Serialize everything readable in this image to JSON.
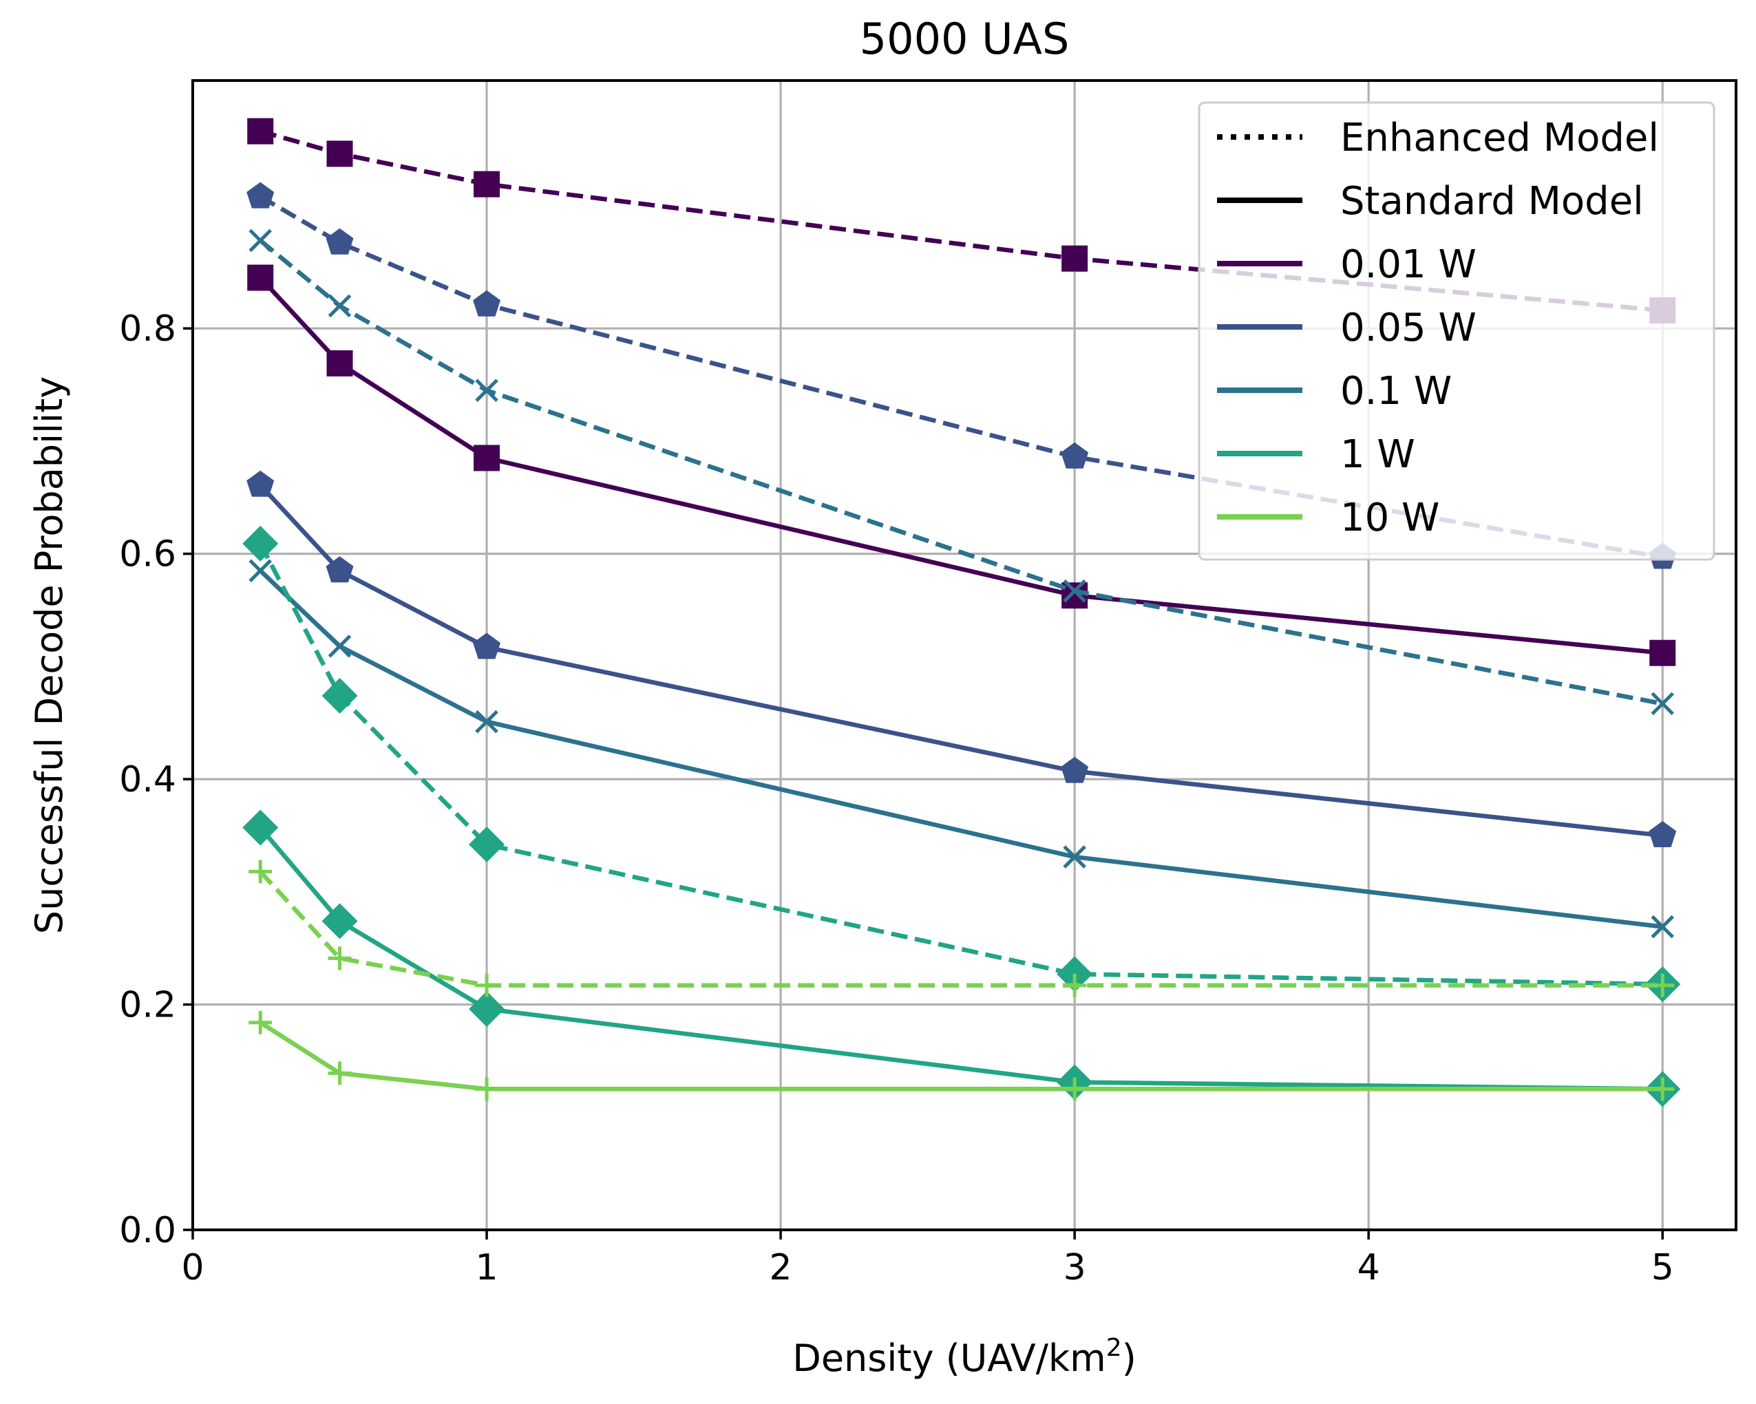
{
  "chart_data": {
    "type": "line",
    "title": "5000 UAS",
    "xlabel_main": "Density (UAV/km",
    "xlabel_sup": "2",
    "xlabel_close": ")",
    "ylabel": "Successful Decode Probability",
    "xlim": [
      0,
      5.25
    ],
    "ylim": [
      0,
      1.02
    ],
    "xticks": [
      0,
      1,
      2,
      3,
      4,
      5
    ],
    "yticks": [
      0.0,
      0.2,
      0.4,
      0.6,
      0.8
    ],
    "ytick_labels": [
      "0.0",
      "0.2",
      "0.4",
      "0.6",
      "0.8"
    ],
    "grid": true,
    "legend_position": "top-right",
    "legend": [
      {
        "label": "Enhanced Model",
        "style": "dotted",
        "color": "#000000"
      },
      {
        "label": "Standard Model",
        "style": "solid",
        "color": "#000000"
      },
      {
        "label": "0.01 W",
        "style": "solid",
        "color": "#440154"
      },
      {
        "label": "0.05 W",
        "style": "solid",
        "color": "#3b528b"
      },
      {
        "label": "0.1 W",
        "style": "solid",
        "color": "#2c728e"
      },
      {
        "label": "1 W",
        "style": "solid",
        "color": "#21a585"
      },
      {
        "label": "10 W",
        "style": "solid",
        "color": "#7ad151"
      }
    ],
    "x": [
      0.23,
      0.5,
      1,
      3,
      5
    ],
    "series": [
      {
        "name": "0.01 W",
        "model": "Enhanced Model",
        "color": "#440154",
        "marker": "square",
        "values": [
          0.975,
          0.955,
          0.928,
          0.862,
          0.816
        ]
      },
      {
        "name": "0.01 W",
        "model": "Standard Model",
        "color": "#440154",
        "marker": "square",
        "values": [
          0.845,
          0.769,
          0.685,
          0.563,
          0.512
        ]
      },
      {
        "name": "0.05 W",
        "model": "Enhanced Model",
        "color": "#3b528b",
        "marker": "pentagon",
        "values": [
          0.917,
          0.876,
          0.821,
          0.686,
          0.597
        ]
      },
      {
        "name": "0.05 W",
        "model": "Standard Model",
        "color": "#3b528b",
        "marker": "pentagon",
        "values": [
          0.661,
          0.585,
          0.517,
          0.407,
          0.35
        ]
      },
      {
        "name": "0.1 W",
        "model": "Enhanced Model",
        "color": "#2c728e",
        "marker": "x",
        "values": [
          0.878,
          0.82,
          0.745,
          0.567,
          0.467
        ]
      },
      {
        "name": "0.1 W",
        "model": "Standard Model",
        "color": "#2c728e",
        "marker": "x",
        "values": [
          0.585,
          0.518,
          0.451,
          0.331,
          0.269
        ]
      },
      {
        "name": "1 W",
        "model": "Enhanced Model",
        "color": "#21a585",
        "marker": "diamond",
        "values": [
          0.609,
          0.474,
          0.342,
          0.227,
          0.218
        ]
      },
      {
        "name": "1 W",
        "model": "Standard Model",
        "color": "#21a585",
        "marker": "diamond",
        "values": [
          0.357,
          0.274,
          0.196,
          0.131,
          0.125
        ]
      },
      {
        "name": "10 W",
        "model": "Enhanced Model",
        "color": "#7ad151",
        "marker": "plus",
        "values": [
          0.318,
          0.241,
          0.217,
          0.217,
          0.217
        ]
      },
      {
        "name": "10 W",
        "model": "Standard Model",
        "color": "#7ad151",
        "marker": "plus",
        "values": [
          0.184,
          0.139,
          0.125,
          0.125,
          0.125
        ]
      }
    ]
  }
}
